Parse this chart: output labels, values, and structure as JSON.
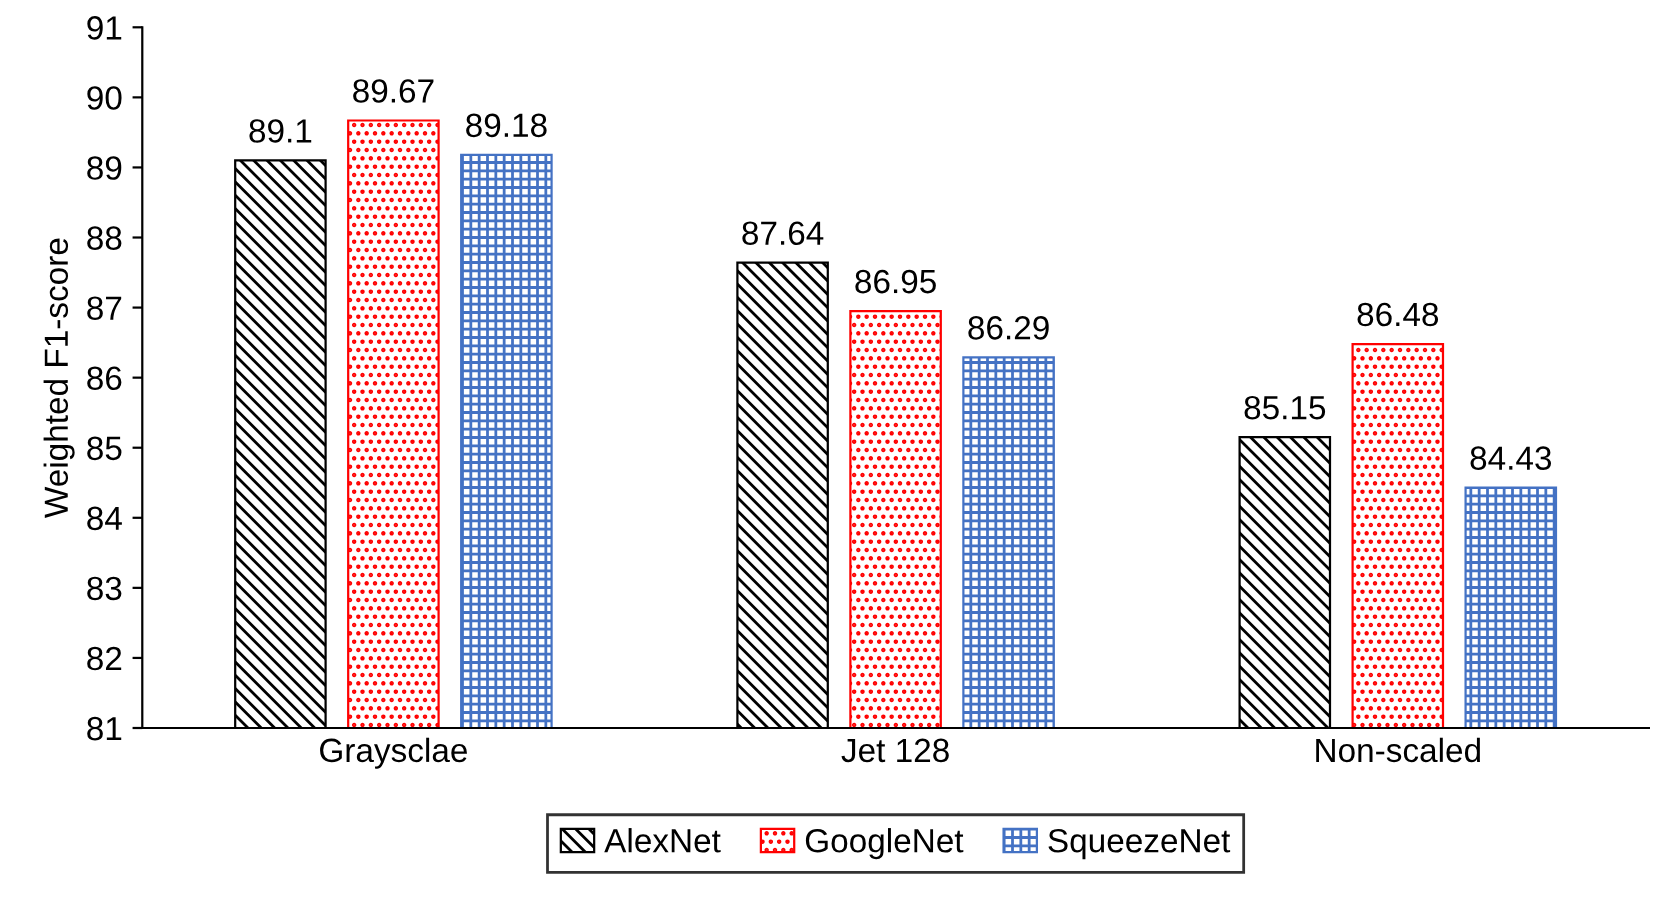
{
  "chart_data": {
    "type": "bar",
    "ylabel": "Weighted F1-score",
    "categories": [
      "Graysclae",
      "Jet 128",
      "Non-scaled"
    ],
    "series": [
      {
        "name": "AlexNet",
        "color": "#000000",
        "values": [
          89.1,
          87.64,
          85.15
        ]
      },
      {
        "name": "GoogleNet",
        "color": "#ff0000",
        "values": [
          89.67,
          86.95,
          86.48
        ]
      },
      {
        "name": "SqueezeNet",
        "color": "#4472c4",
        "values": [
          89.18,
          86.29,
          84.43
        ]
      }
    ],
    "ylim": [
      81,
      91
    ],
    "yticks": [
      81,
      82,
      83,
      84,
      85,
      86,
      87,
      88,
      89,
      90,
      91
    ],
    "data_labels": true,
    "legend": "bottom",
    "grid": false
  }
}
